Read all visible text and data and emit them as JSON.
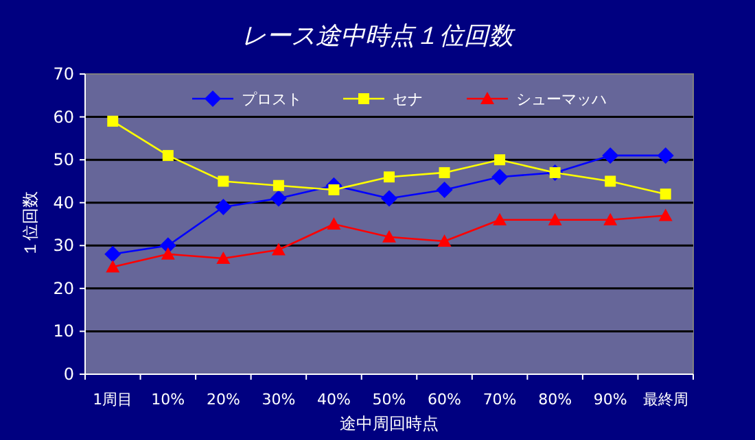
{
  "chart_data": {
    "type": "line",
    "title": "レース途中時点１位回数",
    "xlabel": "途中周回時点",
    "ylabel": "１位回数",
    "categories": [
      "1周目",
      "10%",
      "20%",
      "30%",
      "40%",
      "50%",
      "60%",
      "70%",
      "80%",
      "90%",
      "最終周"
    ],
    "ylim": [
      0,
      70
    ],
    "yticks": [
      0,
      10,
      20,
      30,
      40,
      50,
      60,
      70
    ],
    "grid": "y",
    "legend": "top",
    "series": [
      {
        "name": "プロスト",
        "color": "#0000ff",
        "marker": "diamond",
        "values": [
          28,
          30,
          39,
          41,
          44,
          41,
          43,
          46,
          47,
          51,
          51
        ]
      },
      {
        "name": "セナ",
        "color": "#ffff00",
        "marker": "square",
        "values": [
          59,
          51,
          45,
          44,
          43,
          46,
          47,
          50,
          47,
          45,
          42
        ]
      },
      {
        "name": "シューマッハ",
        "color": "#ff0000",
        "marker": "triangle",
        "values": [
          25,
          28,
          27,
          29,
          35,
          32,
          31,
          36,
          36,
          36,
          37
        ]
      }
    ]
  }
}
